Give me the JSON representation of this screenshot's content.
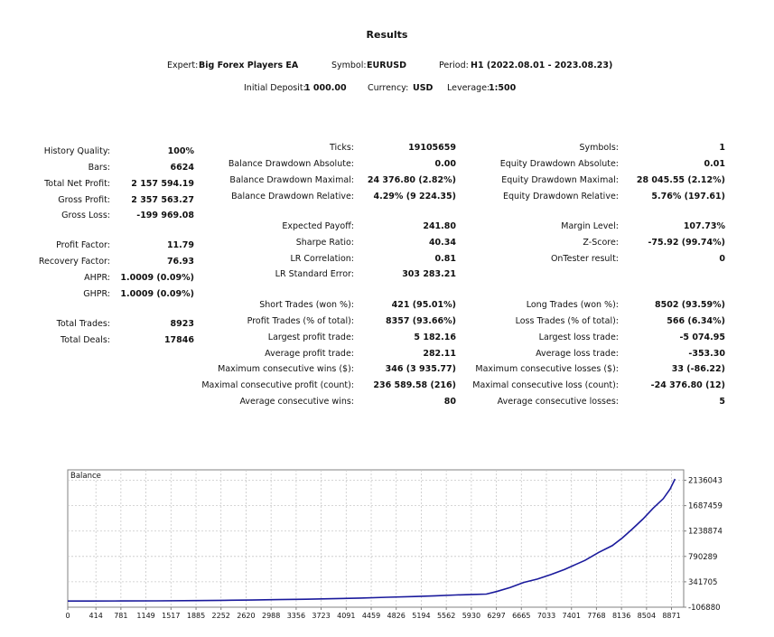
{
  "header": {
    "title": "Results",
    "expert_label": "Expert:",
    "expert_value": "Big Forex Players EA",
    "symbol_label": "Symbol:",
    "symbol_value": "EURUSD",
    "period_label": "Period:",
    "period_value": "H1 (2022.08.01 - 2023.08.23)",
    "deposit_label": "Initial Deposit:",
    "deposit_value": "1 000.00",
    "currency_label": "Currency:",
    "currency_value": "USD",
    "leverage_label": "Leverage:",
    "leverage_value": "1:500"
  },
  "left_stats": [
    {
      "label": "History Quality:",
      "value": "100%"
    },
    {
      "label": "Bars:",
      "value": "6624"
    },
    {
      "label": "Total Net Profit:",
      "value": "2 157 594.19"
    },
    {
      "label": "Gross Profit:",
      "value": "2 357 563.27"
    },
    {
      "label": "Gross Loss:",
      "value": "-199 969.08"
    },
    {
      "label": "Profit Factor:",
      "value": "11.79"
    },
    {
      "label": "Recovery Factor:",
      "value": "76.93"
    },
    {
      "label": "AHPR:",
      "value": "1.0009 (0.09%)"
    },
    {
      "label": "GHPR:",
      "value": "1.0009 (0.09%)"
    },
    {
      "label": "Total Trades:",
      "value": "8923"
    },
    {
      "label": "Total Deals:",
      "value": "17846"
    }
  ],
  "mid_stats": [
    {
      "label": "Ticks:",
      "value": "19105659"
    },
    {
      "label": "Balance Drawdown Absolute:",
      "value": "0.00"
    },
    {
      "label": "Balance Drawdown Maximal:",
      "value": "24 376.80 (2.82%)"
    },
    {
      "label": "Balance Drawdown Relative:",
      "value": "4.29% (9 224.35)"
    },
    {
      "label": "Expected Payoff:",
      "value": "241.80"
    },
    {
      "label": "Sharpe Ratio:",
      "value": "40.34"
    },
    {
      "label": "LR Correlation:",
      "value": "0.81"
    },
    {
      "label": "LR Standard Error:",
      "value": "303 283.21"
    },
    {
      "label": "Short Trades (won %):",
      "value": "421 (95.01%)"
    },
    {
      "label": "Profit Trades (% of total):",
      "value": "8357 (93.66%)"
    },
    {
      "label": "Largest profit trade:",
      "value": "5 182.16"
    },
    {
      "label": "Average profit trade:",
      "value": "282.11"
    },
    {
      "label": "Maximum consecutive wins ($):",
      "value": "346 (3 935.77)"
    },
    {
      "label": "Maximal consecutive profit (count):",
      "value": "236 589.58 (216)"
    },
    {
      "label": "Average consecutive wins:",
      "value": "80"
    }
  ],
  "right_stats": [
    {
      "label": "Symbols:",
      "value": "1"
    },
    {
      "label": "Equity Drawdown Absolute:",
      "value": "0.01"
    },
    {
      "label": "Equity Drawdown Maximal:",
      "value": "28 045.55 (2.12%)"
    },
    {
      "label": "Equity Drawdown Relative:",
      "value": "5.76% (197.61)"
    },
    {
      "label": "Margin Level:",
      "value": "107.73%"
    },
    {
      "label": "Z-Score:",
      "value": "-75.92 (99.74%)"
    },
    {
      "label": "OnTester result:",
      "value": "0"
    },
    {
      "label": "Long Trades (won %):",
      "value": "8502 (93.59%)"
    },
    {
      "label": "Loss Trades (% of total):",
      "value": "566 (6.34%)"
    },
    {
      "label": "Largest loss trade:",
      "value": "-5 074.95"
    },
    {
      "label": "Average loss trade:",
      "value": "-353.30"
    },
    {
      "label": "Maximum consecutive losses ($):",
      "value": "33 (-86.22)"
    },
    {
      "label": "Maximal consecutive loss (count):",
      "value": "-24 376.80 (12)"
    },
    {
      "label": "Average consecutive losses:",
      "value": "5"
    }
  ],
  "colors": {
    "line": "#1a1a9c",
    "grid": "#c8c8c8",
    "frame": "#808080"
  },
  "chart_data": {
    "type": "line",
    "title": "Balance",
    "xlabel": "",
    "ylabel": "",
    "grid": true,
    "xlim": [
      0,
      9050
    ],
    "ylim": [
      -106880,
      2320000
    ],
    "x_ticks": [
      0,
      414,
      781,
      1149,
      1517,
      1885,
      2252,
      2620,
      2988,
      3356,
      3723,
      4091,
      4459,
      4826,
      5194,
      5562,
      5930,
      6297,
      6665,
      7033,
      7401,
      7768,
      8136,
      8504,
      8871
    ],
    "y_ticks": [
      -106880,
      341705,
      790289,
      1238874,
      1687459,
      2136043
    ],
    "series": [
      {
        "name": "Balance",
        "x": [
          0,
          300,
          800,
          1300,
          1900,
          2300,
          2700,
          3100,
          3500,
          3900,
          4300,
          4700,
          5100,
          5400,
          5700,
          5950,
          6150,
          6300,
          6500,
          6700,
          6900,
          7100,
          7300,
          7450,
          7600,
          7800,
          8000,
          8150,
          8300,
          8450,
          8600,
          8750,
          8850,
          8923
        ],
        "y": [
          1000,
          2000,
          3000,
          5000,
          9000,
          14000,
          20000,
          27000,
          34000,
          43000,
          54000,
          68000,
          82000,
          95000,
          108000,
          118000,
          125000,
          170000,
          240000,
          330000,
          390000,
          470000,
          560000,
          640000,
          720000,
          860000,
          980000,
          1120000,
          1280000,
          1450000,
          1640000,
          1810000,
          1980000,
          2158594
        ]
      }
    ]
  }
}
